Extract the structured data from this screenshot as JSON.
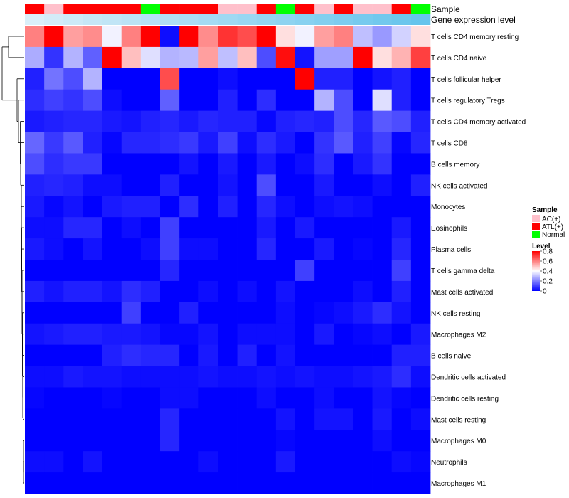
{
  "chart_data": {
    "type": "heatmap",
    "title": "",
    "annotation_labels": [
      "Sample",
      "Gene expression level"
    ],
    "sample_groups": [
      "ATL(+)",
      "AC(+)",
      "ATL(+)",
      "ATL(+)",
      "ATL(+)",
      "ATL(+)",
      "Normal",
      "ATL(+)",
      "ATL(+)",
      "ATL(+)",
      "AC(+)",
      "AC(+)",
      "ATL(+)",
      "Normal",
      "ATL(+)",
      "AC(+)",
      "ATL(+)",
      "AC(+)",
      "AC(+)",
      "ATL(+)",
      "Normal"
    ],
    "gene_expression_level": [
      0.1,
      0.15,
      0.2,
      0.25,
      0.28,
      0.32,
      0.36,
      0.4,
      0.44,
      0.48,
      0.52,
      0.56,
      0.6,
      0.64,
      0.68,
      0.72,
      0.76,
      0.8,
      0.84,
      0.88,
      0.92
    ],
    "rows": [
      {
        "name": "T cells CD4 memory resting",
        "values": [
          0.6,
          0.8,
          0.55,
          0.58,
          0.38,
          0.6,
          0.8,
          0.02,
          0.8,
          0.58,
          0.72,
          0.68,
          0.8,
          0.45,
          0.38,
          0.55,
          0.6,
          0.3,
          0.24,
          0.33,
          0.45
        ]
      },
      {
        "name": "T cells CD4 naive",
        "values": [
          0.27,
          0.08,
          0.28,
          0.15,
          0.8,
          0.5,
          0.35,
          0.28,
          0.29,
          0.55,
          0.3,
          0.5,
          0.12,
          0.78,
          0.03,
          0.25,
          0.25,
          0.8,
          0.45,
          0.52,
          0.7
        ]
      },
      {
        "name": "T cells follicular helper",
        "values": [
          0.05,
          0.18,
          0.12,
          0.28,
          0.0,
          0.0,
          0.0,
          0.68,
          0.0,
          0.0,
          0.02,
          0.0,
          0.0,
          0.0,
          0.8,
          0.05,
          0.05,
          0.0,
          0.03,
          0.05,
          0.0
        ]
      },
      {
        "name": "T cells regulatory  Tregs",
        "values": [
          0.07,
          0.1,
          0.08,
          0.12,
          0.02,
          0.0,
          0.0,
          0.15,
          0.0,
          0.0,
          0.05,
          0.0,
          0.07,
          0.0,
          0.0,
          0.28,
          0.12,
          0.0,
          0.35,
          0.05,
          0.0
        ]
      },
      {
        "name": "T cells CD4 memory activated",
        "values": [
          0.04,
          0.05,
          0.06,
          0.06,
          0.04,
          0.03,
          0.05,
          0.06,
          0.04,
          0.06,
          0.05,
          0.05,
          0.01,
          0.05,
          0.06,
          0.05,
          0.12,
          0.06,
          0.14,
          0.12,
          0.05
        ]
      },
      {
        "name": "T cells CD8",
        "values": [
          0.16,
          0.09,
          0.14,
          0.05,
          0.01,
          0.06,
          0.06,
          0.07,
          0.09,
          0.04,
          0.1,
          0.02,
          0.07,
          0.04,
          0.0,
          0.08,
          0.14,
          0.05,
          0.1,
          0.01,
          0.06
        ]
      },
      {
        "name": "B cells memory",
        "values": [
          0.12,
          0.07,
          0.09,
          0.09,
          0.0,
          0.0,
          0.0,
          0.0,
          0.03,
          0.0,
          0.04,
          0.0,
          0.04,
          0.0,
          0.02,
          0.07,
          0.0,
          0.04,
          0.08,
          0.0,
          0.0
        ]
      },
      {
        "name": "NK cells activated",
        "values": [
          0.05,
          0.06,
          0.05,
          0.02,
          0.02,
          0.0,
          0.0,
          0.05,
          0.0,
          0.0,
          0.03,
          0.0,
          0.12,
          0.0,
          0.0,
          0.04,
          0.0,
          0.0,
          0.02,
          0.0,
          0.05
        ]
      },
      {
        "name": "Monocytes",
        "values": [
          0.04,
          0.01,
          0.03,
          0.0,
          0.04,
          0.05,
          0.05,
          0.0,
          0.07,
          0.0,
          0.05,
          0.0,
          0.06,
          0.02,
          0.0,
          0.02,
          0.03,
          0.02,
          0.0,
          0.0,
          0.0
        ]
      },
      {
        "name": "Eosinophils",
        "values": [
          0.02,
          0.02,
          0.06,
          0.06,
          0.0,
          0.02,
          0.0,
          0.1,
          0.0,
          0.0,
          0.0,
          0.0,
          0.04,
          0.0,
          0.04,
          0.0,
          0.0,
          0.0,
          0.0,
          0.04,
          0.0
        ]
      },
      {
        "name": "Plasma cells",
        "values": [
          0.04,
          0.02,
          0.0,
          0.03,
          0.0,
          0.0,
          0.02,
          0.1,
          0.02,
          0.02,
          0.0,
          0.0,
          0.06,
          0.0,
          0.0,
          0.04,
          0.0,
          0.01,
          0.0,
          0.06,
          0.0
        ]
      },
      {
        "name": "T cells gamma delta",
        "values": [
          0.0,
          0.0,
          0.0,
          0.0,
          0.0,
          0.0,
          0.0,
          0.06,
          0.0,
          0.0,
          0.0,
          0.0,
          0.0,
          0.0,
          0.1,
          0.0,
          0.0,
          0.0,
          0.0,
          0.1,
          0.0
        ]
      },
      {
        "name": "Mast cells activated",
        "values": [
          0.05,
          0.03,
          0.05,
          0.05,
          0.03,
          0.07,
          0.05,
          0.0,
          0.0,
          0.02,
          0.0,
          0.02,
          0.0,
          0.03,
          0.0,
          0.0,
          0.0,
          0.02,
          0.0,
          0.05,
          0.0
        ]
      },
      {
        "name": "NK cells resting",
        "values": [
          0.0,
          0.0,
          0.0,
          0.0,
          0.0,
          0.1,
          0.0,
          0.0,
          0.05,
          0.0,
          0.0,
          0.0,
          0.0,
          0.02,
          0.0,
          0.01,
          0.02,
          0.04,
          0.07,
          0.03,
          0.0
        ]
      },
      {
        "name": "Macrophages M2",
        "values": [
          0.03,
          0.04,
          0.05,
          0.05,
          0.04,
          0.04,
          0.03,
          0.01,
          0.01,
          0.03,
          0.0,
          0.02,
          0.02,
          0.02,
          0.0,
          0.04,
          0.0,
          0.01,
          0.02,
          0.0,
          0.04
        ]
      },
      {
        "name": "B cells naive",
        "values": [
          0.0,
          0.0,
          0.0,
          0.0,
          0.05,
          0.07,
          0.06,
          0.06,
          0.0,
          0.04,
          0.0,
          0.05,
          0.0,
          0.03,
          0.0,
          0.0,
          0.0,
          0.0,
          0.0,
          0.05,
          0.05
        ]
      },
      {
        "name": "Dendritic cells activated",
        "values": [
          0.02,
          0.02,
          0.04,
          0.03,
          0.03,
          0.02,
          0.02,
          0.02,
          0.02,
          0.03,
          0.02,
          0.02,
          0.03,
          0.02,
          0.03,
          0.02,
          0.02,
          0.03,
          0.04,
          0.07,
          0.02
        ]
      },
      {
        "name": "Dendritic cells resting",
        "values": [
          0.01,
          0.0,
          0.0,
          0.0,
          0.01,
          0.0,
          0.0,
          0.02,
          0.02,
          0.0,
          0.0,
          0.0,
          0.02,
          0.0,
          0.0,
          0.02,
          0.0,
          0.0,
          0.03,
          0.01,
          0.0
        ]
      },
      {
        "name": "Mast cells resting",
        "values": [
          0.0,
          0.0,
          0.0,
          0.0,
          0.0,
          0.0,
          0.0,
          0.06,
          0.0,
          0.0,
          0.0,
          0.0,
          0.0,
          0.03,
          0.0,
          0.03,
          0.03,
          0.0,
          0.04,
          0.0,
          0.02
        ]
      },
      {
        "name": "Macrophages M0",
        "values": [
          0.0,
          0.0,
          0.0,
          0.0,
          0.0,
          0.0,
          0.0,
          0.06,
          0.0,
          0.0,
          0.0,
          0.0,
          0.0,
          0.01,
          0.0,
          0.0,
          0.0,
          0.0,
          0.02,
          0.0,
          0.0
        ]
      },
      {
        "name": "Neutrophils",
        "values": [
          0.02,
          0.02,
          0.0,
          0.03,
          0.0,
          0.0,
          0.0,
          0.0,
          0.0,
          0.02,
          0.0,
          0.0,
          0.0,
          0.04,
          0.0,
          0.0,
          0.0,
          0.0,
          0.0,
          0.02,
          0.01
        ]
      },
      {
        "name": "Macrophages M1",
        "values": [
          0.0,
          0.0,
          0.0,
          0.0,
          0.0,
          0.0,
          0.0,
          0.0,
          0.0,
          0.0,
          0.0,
          0.0,
          0.0,
          0.0,
          0.0,
          0.0,
          0.0,
          0.0,
          0.0,
          0.0,
          0.0
        ]
      }
    ],
    "sample_legend": {
      "title": "Sample",
      "items": [
        {
          "label": "AC(+)",
          "color": "#ffc0cb"
        },
        {
          "label": "ATL(+)",
          "color": "#ff0000"
        },
        {
          "label": "Normal",
          "color": "#00ff00"
        }
      ]
    },
    "level_legend": {
      "title": "Level",
      "ticks": [
        "0.8",
        "0.6",
        "0.4",
        "0.2",
        "0"
      ],
      "tick_values": [
        0.8,
        0.6,
        0.4,
        0.2,
        0
      ],
      "range": [
        0,
        0.8
      ]
    },
    "colors": {
      "low": "#0000ff",
      "mid": "#ffffff",
      "high": "#ff0000",
      "gene_low": "#e8f4fa",
      "gene_high": "#5bc0eb"
    }
  }
}
